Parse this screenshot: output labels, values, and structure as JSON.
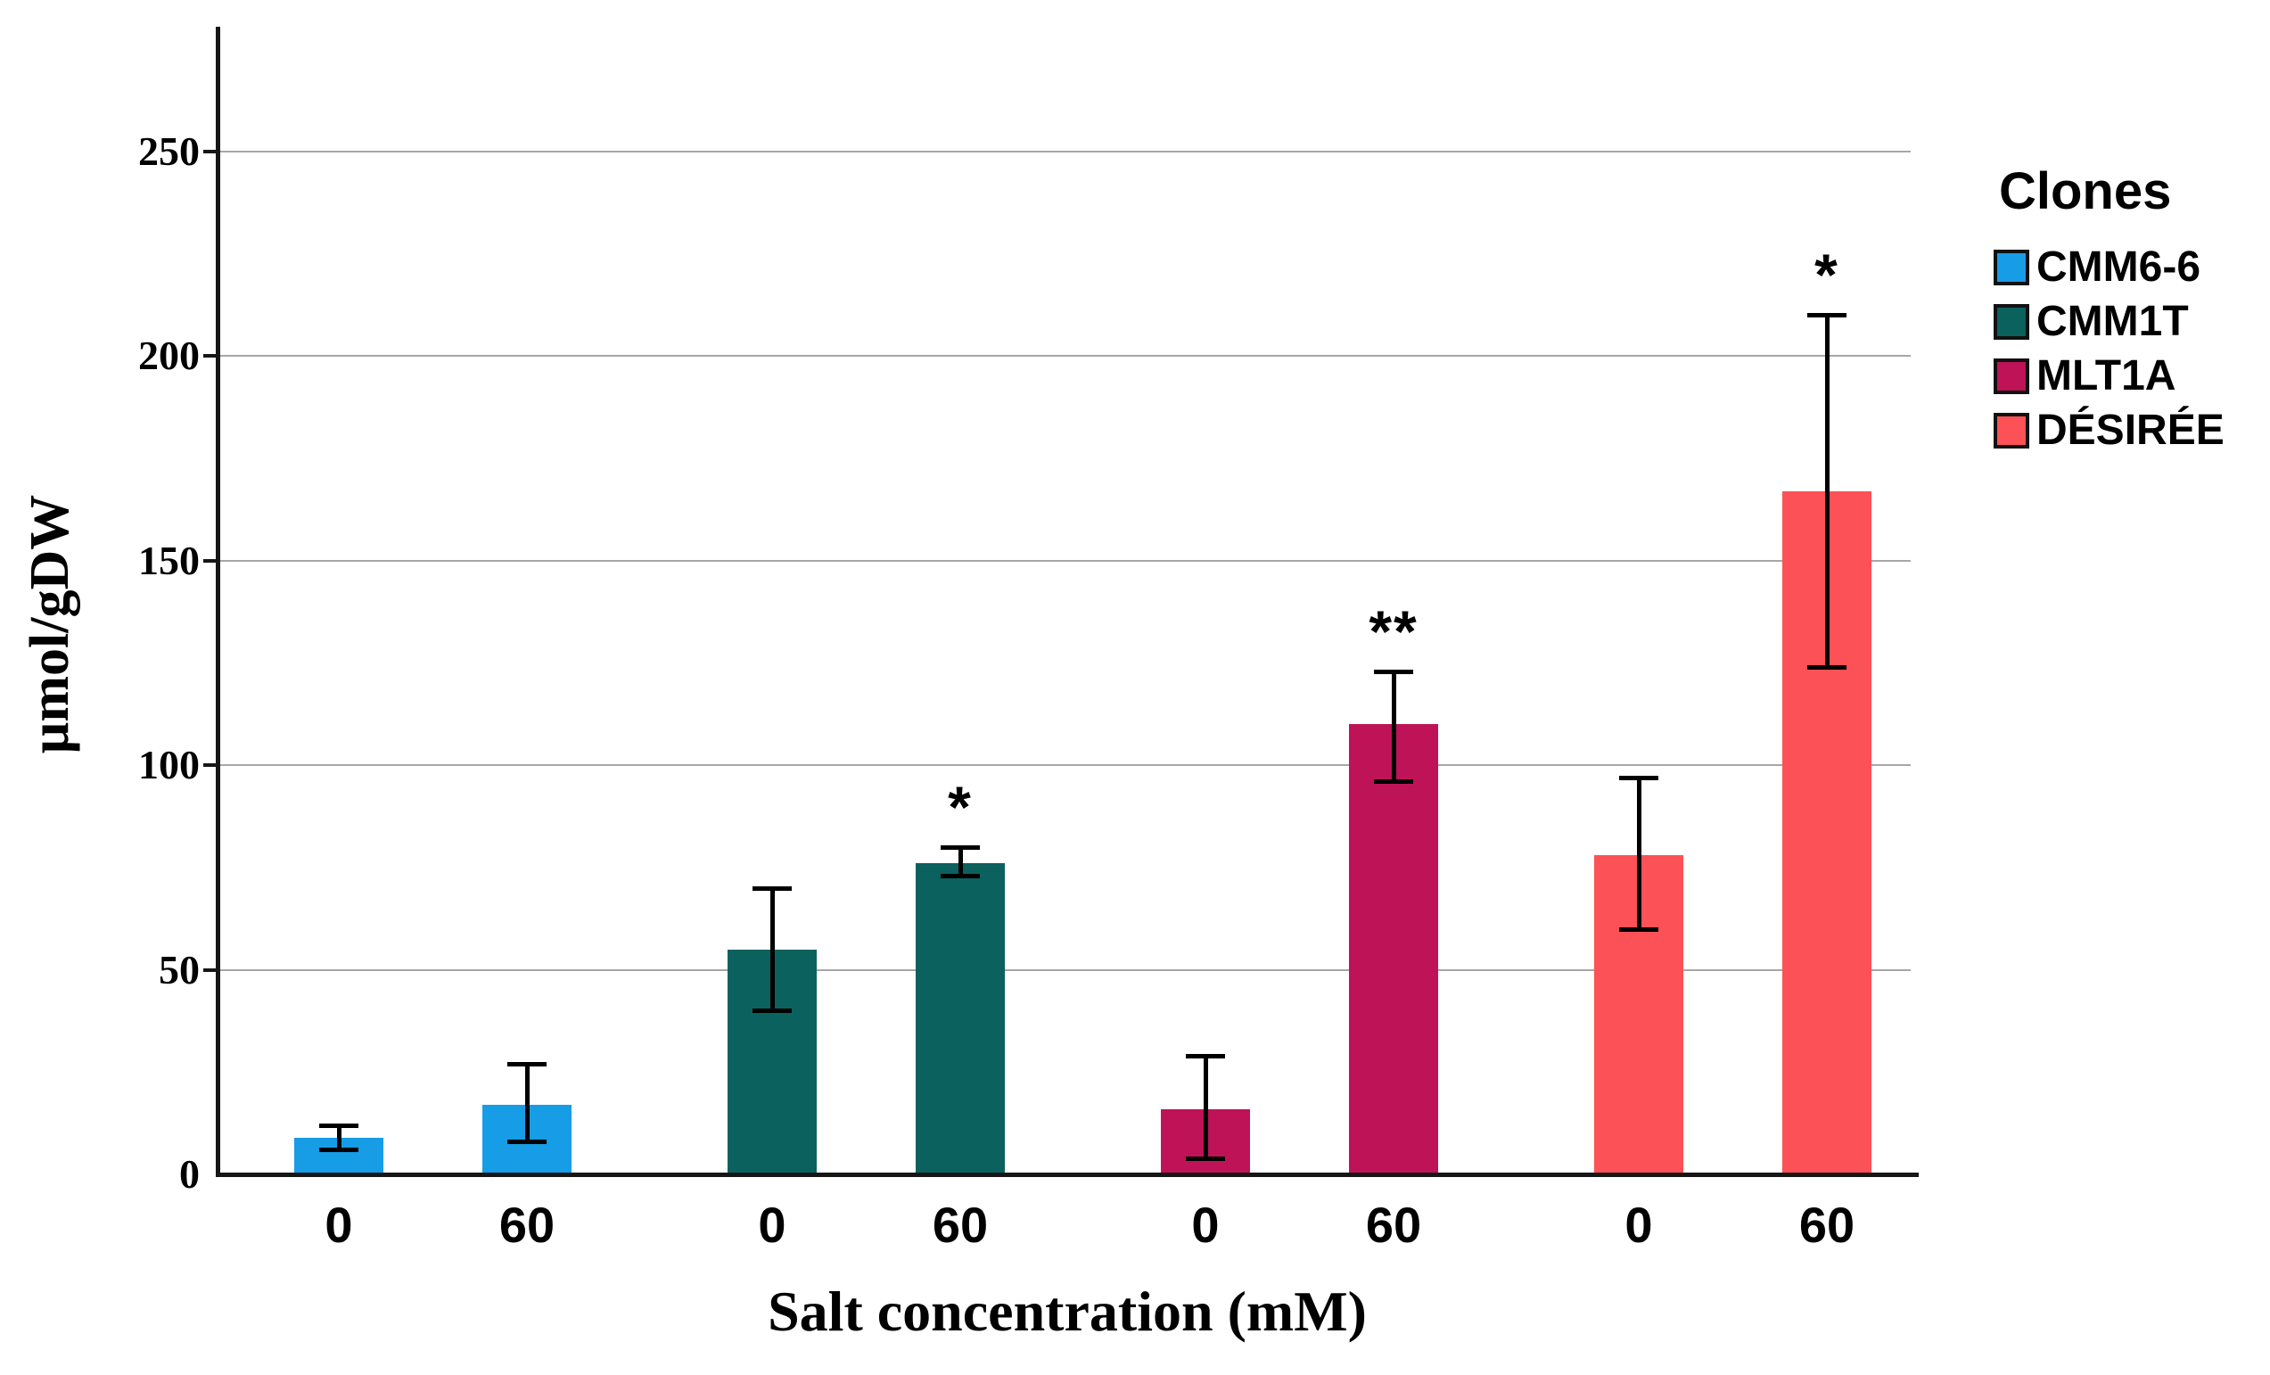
{
  "chart_data": {
    "type": "bar",
    "title": "",
    "xlabel": "Salt concentration (mM)",
    "ylabel": "µmol/gDW",
    "ylim": [
      0,
      280
    ],
    "y_ticks": [
      0,
      50,
      100,
      150,
      200,
      250
    ],
    "grid": "horizontal",
    "grid_color": "#a6a6a6",
    "axis_color": "#161616",
    "error_bar_color": "#000000",
    "legend_position": "right",
    "legend_title": "Clones",
    "group_labels": [
      "0",
      "60"
    ],
    "series": [
      {
        "name": "CMM6-6",
        "color": "#179ce6",
        "points": [
          {
            "x": "0",
            "value": 9,
            "err_low": 6,
            "err_high": 12,
            "sig": ""
          },
          {
            "x": "60",
            "value": 17,
            "err_low": 8,
            "err_high": 27,
            "sig": ""
          }
        ]
      },
      {
        "name": "CMM1T",
        "color": "#0b615e",
        "points": [
          {
            "x": "0",
            "value": 55,
            "err_low": 40,
            "err_high": 70,
            "sig": ""
          },
          {
            "x": "60",
            "value": 76,
            "err_low": 73,
            "err_high": 80,
            "sig": "*"
          }
        ]
      },
      {
        "name": "MLT1A",
        "color": "#be1356",
        "points": [
          {
            "x": "0",
            "value": 16,
            "err_low": 4,
            "err_high": 29,
            "sig": ""
          },
          {
            "x": "60",
            "value": 110,
            "err_low": 96,
            "err_high": 123,
            "sig": "**"
          }
        ]
      },
      {
        "name": "DÉSIRÉE",
        "color": "#fc5156",
        "points": [
          {
            "x": "0",
            "value": 78,
            "err_low": 60,
            "err_high": 97,
            "sig": ""
          },
          {
            "x": "60",
            "value": 167,
            "err_low": 124,
            "err_high": 210,
            "sig": "*"
          }
        ]
      }
    ]
  }
}
